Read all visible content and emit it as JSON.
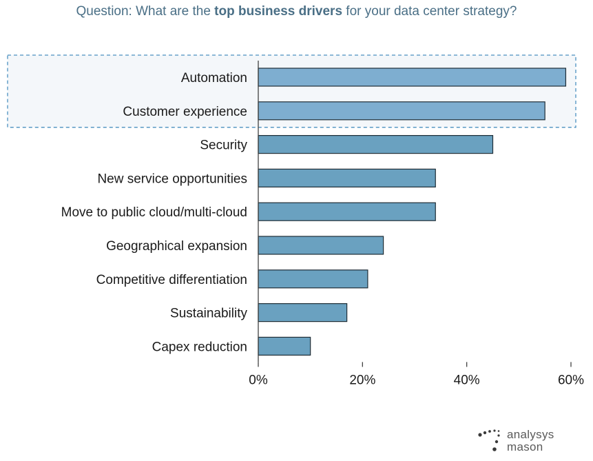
{
  "title": {
    "prefix": "Question: What are the ",
    "bold": "top business drivers",
    "suffix": " for your data center strategy?"
  },
  "colors": {
    "bar": "#6aa1c0",
    "bar_highlight": "#7eaed0",
    "bar_stroke": "#1f2d36",
    "highlight_fill": "#f4f7fa",
    "highlight_border": "#4a90bf",
    "title": "#4a6f86",
    "text": "#1a1a1a"
  },
  "chart_data": {
    "type": "bar",
    "orientation": "horizontal",
    "categories": [
      "Automation",
      "Customer experience",
      "Security",
      "New service opportunities",
      "Move to public cloud/multi-cloud",
      "Geographical expansion",
      "Competitive differentiation",
      "Sustainability",
      "Capex reduction"
    ],
    "values": [
      59,
      55,
      45,
      34,
      34,
      24,
      21,
      17,
      10
    ],
    "highlighted": [
      "Automation",
      "Customer experience"
    ],
    "xlim": [
      0,
      60
    ],
    "xticks": [
      "0%",
      "20%",
      "40%",
      "60%"
    ],
    "grid": false
  },
  "logo": {
    "line1": "analysys",
    "line2": "mason"
  }
}
